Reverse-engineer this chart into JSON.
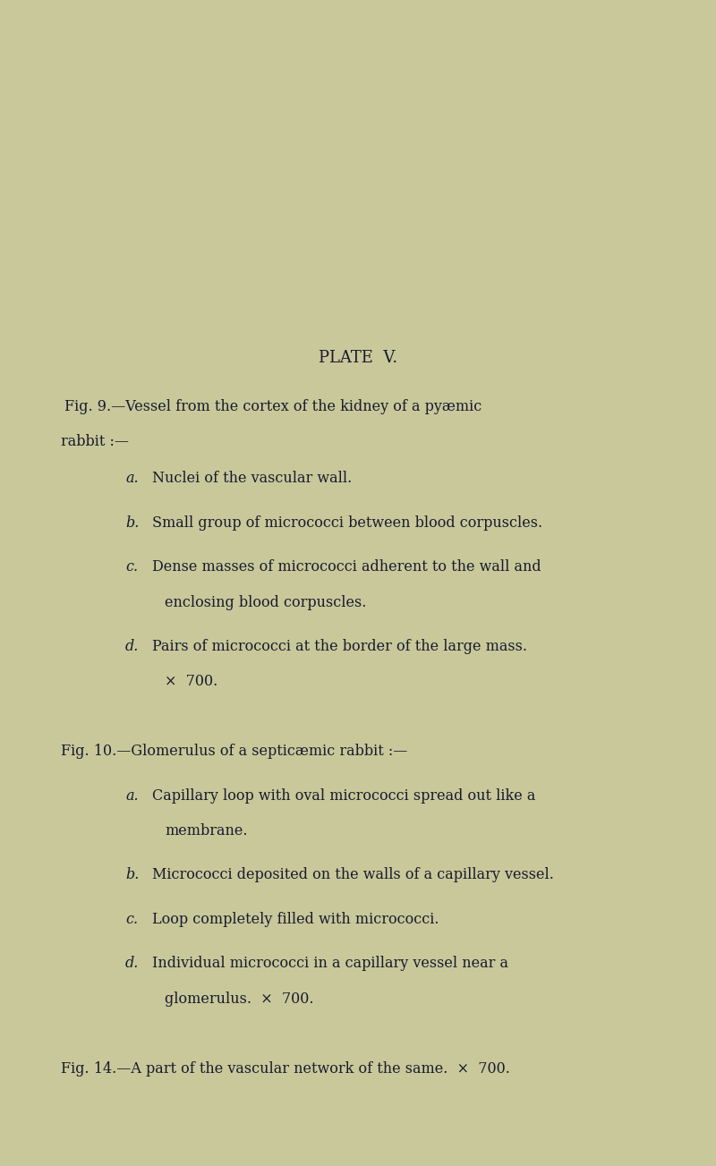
{
  "background_color": "#c8c89a",
  "text_color": "#1a1a2e",
  "fig_width": 8.0,
  "fig_height": 13.03,
  "title": "PLATE  V.",
  "title_fontsize": 13,
  "body_fontsize": 11.5,
  "fig9_line1": "Fig. 9.—Vessel from the cortex of the kidney of a pyæmic",
  "fig9_line2": "rabbit :—",
  "fig9_items_a": "a.",
  "fig9_text_a": "Nuclei of the vascular wall.",
  "fig9_items_b": "b.",
  "fig9_text_b": "Small group of micrococci between blood corpuscles.",
  "fig9_items_c": "c.",
  "fig9_text_c": "Dense masses of micrococci adherent to the wall and",
  "fig9_text_c2": "enclosing blood corpuscles.",
  "fig9_items_d": "d.",
  "fig9_text_d": "Pairs of micrococci at the border of the large mass.",
  "fig9_text_d2": "×  700.",
  "fig10_line1": "Fig. 10.—Glomerulus of a septicæmic rabbit :—",
  "fig10_items_a": "a.",
  "fig10_text_a": "Capillary loop with oval micrococci spread out like a",
  "fig10_text_a2": "membrane.",
  "fig10_items_b": "b.",
  "fig10_text_b": "Micrococci deposited on the walls of a capillary vessel.",
  "fig10_items_c": "c.",
  "fig10_text_c": "Loop completely filled with micrococci.",
  "fig10_items_d": "d.",
  "fig10_text_d": "Individual micrococci in a capillary vessel near a",
  "fig10_text_d2": "glomerulus.  ×  700.",
  "fig14_line": "Fig. 14.—A part of the vascular network of the same.  ×  700."
}
